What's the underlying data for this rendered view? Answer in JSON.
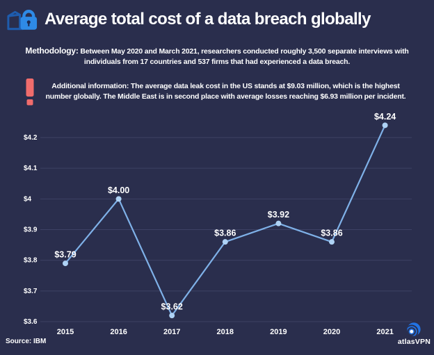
{
  "header": {
    "title": "Average total cost of a data breach globally",
    "icon": "folder-lock-icon"
  },
  "methodology": {
    "label": "Methodology:",
    "text": " Between May 2020 and March 2021, researchers conducted roughly 3,500 separate interviews with individuals from 17 countries and 537 firms that had experienced a data breach."
  },
  "additional_info": {
    "label": "Additional information:",
    "text": " The average data leak cost in the US stands at $9.03 million, which is the highest number globally. The Middle East is in second place with average losses reaching $6.93 million per incident.",
    "icon": "exclamation-icon",
    "icon_color": "#f06c6c"
  },
  "chart_data": {
    "type": "line",
    "title": "Average total cost of a data breach globally",
    "xlabel": "",
    "ylabel": "",
    "categories": [
      "2015",
      "2016",
      "2017",
      "2018",
      "2019",
      "2020",
      "2021"
    ],
    "values": [
      3.79,
      4.0,
      3.62,
      3.86,
      3.92,
      3.86,
      4.24
    ],
    "point_labels": [
      "$3.79",
      "$4.00",
      "$3.62",
      "$3.86",
      "$3.92",
      "$3.86",
      "$4.24"
    ],
    "y_ticks": [
      {
        "value": 3.6,
        "label": "$3.6"
      },
      {
        "value": 3.7,
        "label": "$3.7"
      },
      {
        "value": 3.8,
        "label": "$3.8"
      },
      {
        "value": 3.9,
        "label": "$3.9"
      },
      {
        "value": 4.0,
        "label": "$4"
      },
      {
        "value": 4.1,
        "label": "$4.1"
      },
      {
        "value": 4.2,
        "label": "$4.2"
      }
    ],
    "ylim": [
      3.6,
      4.25
    ],
    "grid": true,
    "legend": "none",
    "colors": {
      "line": "#7fb1e8",
      "point": "#aed2f5",
      "grid": "#3d4264",
      "text": "#ffffff",
      "background": "#2a2e4d"
    }
  },
  "footer": {
    "source": "Source: IBM",
    "brand": "atlasVPN"
  }
}
